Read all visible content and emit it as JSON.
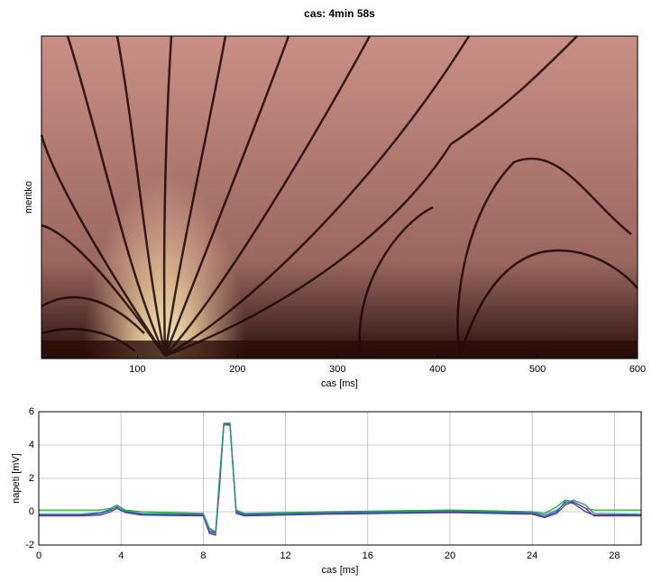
{
  "chart_data": [
    {
      "type": "heatmap",
      "title": "cas: 4min 58s",
      "xlabel": "cas [ms]",
      "ylabel": "meritko",
      "xlim": [
        4,
        600
      ],
      "xticks": [
        100,
        200,
        300,
        400,
        500,
        600
      ]
    },
    {
      "type": "line",
      "xlabel": "cas [ms]",
      "ylabel": "napeti [mV]",
      "xlim": [
        0,
        29.3
      ],
      "ylim": [
        -2,
        6
      ],
      "xticks": [
        0,
        4,
        8,
        12,
        16,
        20,
        24,
        28
      ],
      "yticks": [
        -2,
        0,
        2,
        4,
        6
      ],
      "grid": true,
      "x": [
        0,
        2,
        3,
        3.5,
        3.8,
        4.2,
        5,
        8,
        8.3,
        8.6,
        8.8,
        9,
        9.3,
        9.6,
        10,
        14,
        20,
        24,
        24.6,
        25.2,
        25.6,
        26,
        26.6,
        27,
        29.3
      ],
      "series": [
        {
          "color": "#1f3fbf",
          "values": [
            -0.2,
            -0.2,
            -0.1,
            0.1,
            0.3,
            0,
            -0.15,
            -0.2,
            -1.2,
            -1.3,
            2,
            5.3,
            5.3,
            0,
            -0.2,
            -0.1,
            0,
            -0.1,
            -0.3,
            0,
            0.6,
            0.5,
            0,
            -0.2,
            -0.2
          ]
        },
        {
          "color": "#2ca02c",
          "values": [
            0.1,
            0.1,
            0.1,
            0.2,
            0.4,
            0.1,
            0,
            -0.1,
            -1,
            -1.2,
            1.8,
            5.2,
            5.2,
            0.1,
            -0.1,
            0,
            0.1,
            0,
            -0.1,
            0.3,
            0.7,
            0.6,
            0.2,
            0.1,
            0.1
          ]
        },
        {
          "color": "#7b2d9f",
          "values": [
            -0.25,
            -0.25,
            -0.2,
            0,
            0.2,
            -0.05,
            -0.2,
            -0.25,
            -1.3,
            -1.4,
            1.6,
            5.3,
            5.2,
            -0.1,
            -0.25,
            -0.15,
            -0.05,
            -0.15,
            -0.35,
            -0.1,
            0.4,
            0.6,
            0.2,
            -0.25,
            -0.25
          ]
        },
        {
          "color": "#1a9a9a",
          "values": [
            -0.15,
            -0.15,
            -0.05,
            0.15,
            0.25,
            0.05,
            -0.1,
            -0.15,
            -1.1,
            -1.25,
            2.2,
            5.3,
            5.3,
            0.05,
            -0.15,
            -0.05,
            0.05,
            -0.05,
            -0.2,
            0.1,
            0.5,
            0.7,
            0.4,
            -0.1,
            -0.15
          ]
        }
      ]
    }
  ]
}
